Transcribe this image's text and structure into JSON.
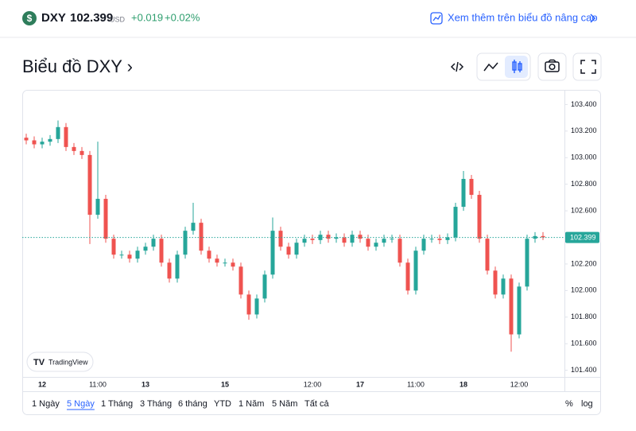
{
  "header": {
    "symbol": "DXY",
    "price": "102.399",
    "currency": "USD",
    "change": "+0.019",
    "change_pct": "+0.02%",
    "link": "Xem thêm trên biểu đồ nâng cao"
  },
  "page_title": "Biểu đồ DXY ›",
  "watermark": "TradingView",
  "ranges": [
    "1 Ngày",
    "5 Ngày",
    "1 Tháng",
    "3 Tháng",
    "6 tháng",
    "YTD",
    "1 Năm",
    "5 Năm",
    "Tất cả"
  ],
  "scale_buttons": [
    "%",
    "log"
  ],
  "chart_data": {
    "type": "candlestick",
    "up_color": "#26a69a",
    "down_color": "#ef5350",
    "price_line_color": "#26a69a",
    "last_price": 102.399,
    "ylim": [
      101.35,
      103.51
    ],
    "yticks": [
      {
        "value": 101.4,
        "label": "101.400"
      },
      {
        "value": 101.6,
        "label": "101.600"
      },
      {
        "value": 101.8,
        "label": "101.800"
      },
      {
        "value": 102.0,
        "label": "102.000"
      },
      {
        "value": 102.2,
        "label": "102.200"
      },
      {
        "value": 102.4,
        "label": "102.400"
      },
      {
        "value": 102.6,
        "label": "102.600"
      },
      {
        "value": 102.8,
        "label": "102.800"
      },
      {
        "value": 103.0,
        "label": "103.000"
      },
      {
        "value": 103.2,
        "label": "103.200"
      },
      {
        "value": 103.4,
        "label": "103.400"
      }
    ],
    "categories": [
      null,
      null,
      "12",
      null,
      null,
      null,
      null,
      null,
      null,
      "11:00",
      null,
      null,
      null,
      null,
      null,
      "13",
      null,
      null,
      null,
      null,
      null,
      null,
      null,
      null,
      null,
      "15",
      null,
      null,
      null,
      null,
      null,
      null,
      null,
      null,
      null,
      null,
      "12:00",
      null,
      null,
      null,
      null,
      null,
      "17",
      null,
      null,
      null,
      null,
      null,
      null,
      "11:00",
      null,
      null,
      null,
      null,
      null,
      "18",
      null,
      null,
      null,
      null,
      null,
      null,
      "12:00",
      null,
      null,
      null
    ],
    "open": [
      103.15,
      103.13,
      103.1,
      103.12,
      103.14,
      103.23,
      103.08,
      103.05,
      103.02,
      102.57,
      102.69,
      102.39,
      102.27,
      102.27,
      102.24,
      102.3,
      102.33,
      102.39,
      102.21,
      102.09,
      102.27,
      102.45,
      102.51,
      102.3,
      102.24,
      102.21,
      102.21,
      102.18,
      101.97,
      101.82,
      101.94,
      102.12,
      102.45,
      102.33,
      102.27,
      102.36,
      102.39,
      102.38,
      102.42,
      102.39,
      102.4,
      102.36,
      102.42,
      102.39,
      102.33,
      102.36,
      102.39,
      102.39,
      102.21,
      102.0,
      102.3,
      102.39,
      102.39,
      102.38,
      102.4,
      102.63,
      102.84,
      102.72,
      102.39,
      102.15,
      101.97,
      102.09,
      101.67,
      102.03,
      102.39,
      102.41
    ],
    "high": [
      103.18,
      103.16,
      103.15,
      103.17,
      103.28,
      103.26,
      103.11,
      103.08,
      103.05,
      103.12,
      102.72,
      102.42,
      102.3,
      102.3,
      102.33,
      102.36,
      102.42,
      102.42,
      102.24,
      102.3,
      102.48,
      102.66,
      102.54,
      102.33,
      102.27,
      102.24,
      102.24,
      102.21,
      102.0,
      101.97,
      102.15,
      102.55,
      102.48,
      102.36,
      102.39,
      102.42,
      102.42,
      102.45,
      102.45,
      102.43,
      102.43,
      102.45,
      102.45,
      102.42,
      102.39,
      102.42,
      102.42,
      102.42,
      102.24,
      102.33,
      102.42,
      102.42,
      102.42,
      102.43,
      102.66,
      102.9,
      102.87,
      102.75,
      102.42,
      102.18,
      102.12,
      102.12,
      102.06,
      102.42,
      102.44,
      102.44
    ],
    "low": [
      103.1,
      103.07,
      103.07,
      103.09,
      103.11,
      103.05,
      103.02,
      102.99,
      102.35,
      102.54,
      102.36,
      102.24,
      102.24,
      102.21,
      102.21,
      102.27,
      102.3,
      102.18,
      102.06,
      102.06,
      102.24,
      102.42,
      102.27,
      102.21,
      102.18,
      102.18,
      102.15,
      101.94,
      101.78,
      101.79,
      101.91,
      102.09,
      102.3,
      102.24,
      102.24,
      102.33,
      102.35,
      102.35,
      102.36,
      102.36,
      102.33,
      102.33,
      102.36,
      102.3,
      102.3,
      102.33,
      102.36,
      102.18,
      101.97,
      101.97,
      102.27,
      102.36,
      102.35,
      102.35,
      102.37,
      102.6,
      102.69,
      102.36,
      102.12,
      101.94,
      101.94,
      101.54,
      101.64,
      102.0,
      102.36,
      102.38
    ],
    "close": [
      103.13,
      103.1,
      103.12,
      103.14,
      103.23,
      103.08,
      103.05,
      103.02,
      102.57,
      102.69,
      102.39,
      102.27,
      102.27,
      102.24,
      102.3,
      102.33,
      102.39,
      102.21,
      102.09,
      102.27,
      102.45,
      102.51,
      102.3,
      102.24,
      102.21,
      102.21,
      102.18,
      101.97,
      101.82,
      101.94,
      102.12,
      102.45,
      102.33,
      102.27,
      102.36,
      102.39,
      102.38,
      102.42,
      102.39,
      102.4,
      102.36,
      102.42,
      102.39,
      102.33,
      102.36,
      102.39,
      102.39,
      102.21,
      102.0,
      102.3,
      102.39,
      102.39,
      102.38,
      102.4,
      102.63,
      102.84,
      102.72,
      102.39,
      102.15,
      101.97,
      102.09,
      101.67,
      102.03,
      102.39,
      102.41,
      102.4
    ]
  }
}
